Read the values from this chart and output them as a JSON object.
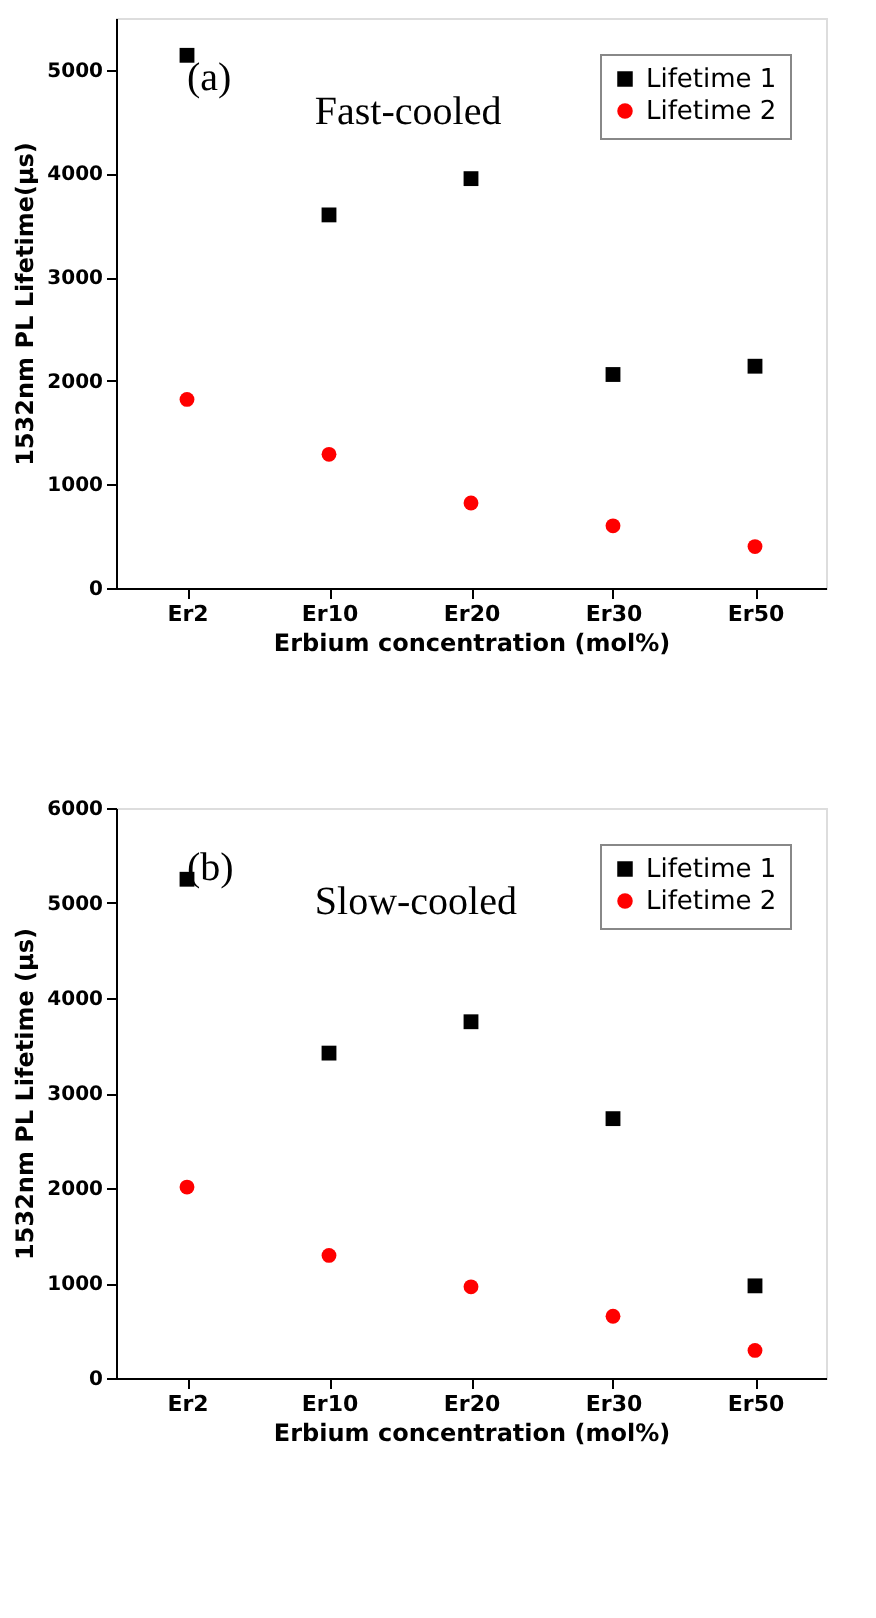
{
  "chart_data": [
    {
      "type": "scatter",
      "categories": [
        "Er2",
        "Er10",
        "Er20",
        "Er30",
        "Er50"
      ],
      "xlabel": "Erbium concentration (mol%)",
      "ylabel": "1532nm PL Lifetime(μs)",
      "ylim": [
        0,
        5500
      ],
      "yticks": [
        0,
        1000,
        2000,
        3000,
        4000,
        5000
      ],
      "grid": false,
      "legend": "top right",
      "annotations": [
        "(a)",
        "Fast-cooled"
      ],
      "series": [
        {
          "name": "Lifetime 1",
          "color": "#000000",
          "marker": "square",
          "values": [
            5140,
            3600,
            3950,
            2060,
            2140
          ]
        },
        {
          "name": "Lifetime 2",
          "color": "#ff0000",
          "marker": "circle",
          "values": [
            1820,
            1290,
            820,
            600,
            400
          ]
        }
      ]
    },
    {
      "type": "scatter",
      "categories": [
        "Er2",
        "Er10",
        "Er20",
        "Er30",
        "Er50"
      ],
      "xlabel": "Erbium concentration (mol%)",
      "ylabel": "1532nm PL Lifetime (μs)",
      "ylim": [
        0,
        6000
      ],
      "yticks": [
        0,
        1000,
        2000,
        3000,
        4000,
        5000,
        6000
      ],
      "grid": false,
      "legend": "top right",
      "annotations": [
        "(b)",
        "Slow-cooled"
      ],
      "series": [
        {
          "name": "Lifetime 1",
          "color": "#000000",
          "marker": "square",
          "values": [
            5250,
            3420,
            3750,
            2730,
            970
          ]
        },
        {
          "name": "Lifetime 2",
          "color": "#ff0000",
          "marker": "circle",
          "values": [
            2010,
            1290,
            960,
            650,
            290
          ]
        }
      ]
    }
  ]
}
